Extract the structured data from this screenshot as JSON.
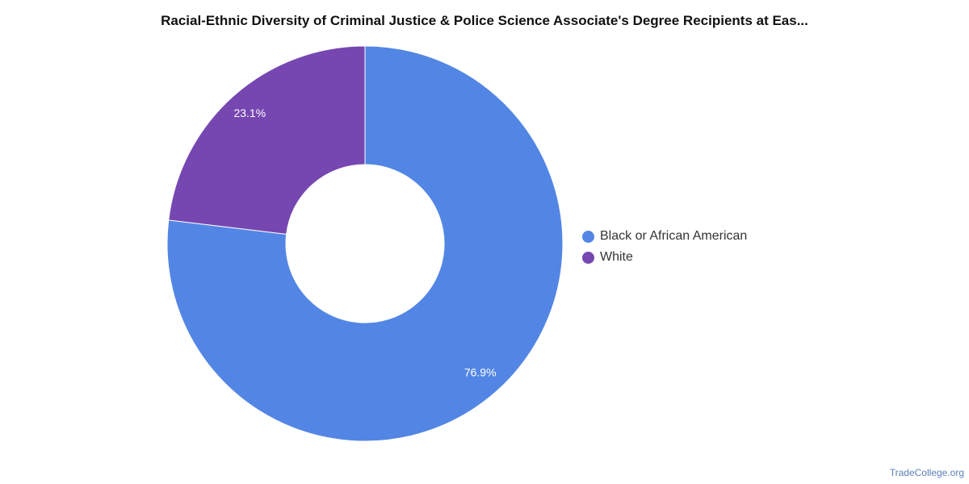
{
  "title": "Racial-Ethnic Diversity of Criminal Justice & Police Science Associate's Degree Recipients at Eas...",
  "credit": "TradeCollege.org",
  "chart_data": {
    "type": "pie",
    "donut": true,
    "title": "Racial-Ethnic Diversity of Criminal Justice & Police Science Associate's Degree Recipients at Eas...",
    "legend_position": "right",
    "slices": [
      {
        "label": "Black or African American",
        "value": 76.9,
        "value_label": "76.9%",
        "color": "#5386e4"
      },
      {
        "label": "White",
        "value": 23.1,
        "value_label": "23.1%",
        "color": "#7647b1"
      }
    ]
  }
}
